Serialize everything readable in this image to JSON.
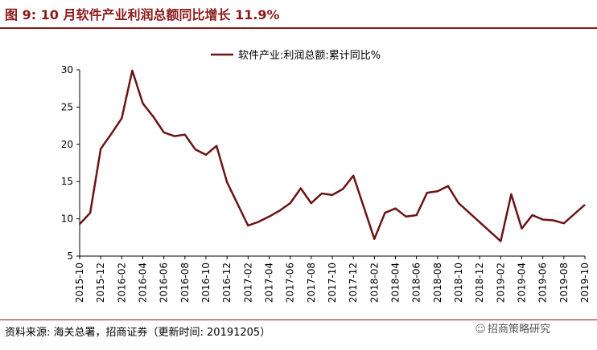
{
  "figure": {
    "title": "图 9:  10 月软件产业利润总额同比增长 11.9%",
    "source": "资料来源:  海关总署，招商证券（更新时间:  20191205）",
    "watermark": "招商策略研究",
    "accent_color": "#8b1a1a",
    "line_color": "#6b1414"
  },
  "chart_data": {
    "type": "line",
    "title": "",
    "xlabel": "",
    "ylabel": "",
    "ylim": [
      5,
      30
    ],
    "yticks": [
      5,
      10,
      15,
      20,
      25,
      30
    ],
    "grid": false,
    "legend": "top-right",
    "x": [
      "2015-10",
      "2015-11",
      "2015-12",
      "2016-01",
      "2016-02",
      "2016-03",
      "2016-04",
      "2016-05",
      "2016-06",
      "2016-07",
      "2016-08",
      "2016-09",
      "2016-10",
      "2016-11",
      "2016-12",
      "2017-01",
      "2017-02",
      "2017-03",
      "2017-04",
      "2017-05",
      "2017-06",
      "2017-07",
      "2017-08",
      "2017-09",
      "2017-10",
      "2017-11",
      "2017-12",
      "2018-01",
      "2018-02",
      "2018-03",
      "2018-04",
      "2018-05",
      "2018-06",
      "2018-07",
      "2018-08",
      "2018-09",
      "2018-10",
      "2018-11",
      "2018-12",
      "2019-01",
      "2019-02",
      "2019-03",
      "2019-04",
      "2019-05",
      "2019-06",
      "2019-07",
      "2019-08",
      "2019-09",
      "2019-10"
    ],
    "xticks": [
      "2015-10",
      "2015-12",
      "2016-02",
      "2016-04",
      "2016-06",
      "2016-08",
      "2016-10",
      "2016-12",
      "2017-02",
      "2017-04",
      "2017-06",
      "2017-08",
      "2017-10",
      "2017-12",
      "2018-02",
      "2018-04",
      "2018-06",
      "2018-08",
      "2018-10",
      "2018-12",
      "2019-02",
      "2019-04",
      "2019-06",
      "2019-08",
      "2019-10"
    ],
    "series": [
      {
        "name": "软件产业:利润总额:累计同比%",
        "values": [
          9.3,
          10.8,
          19.4,
          21.4,
          23.5,
          29.9,
          25.5,
          23.7,
          21.6,
          21.1,
          21.3,
          19.3,
          18.6,
          19.8,
          14.9,
          null,
          9.1,
          9.6,
          10.3,
          11.1,
          12.1,
          14.1,
          12.1,
          13.4,
          13.2,
          14.0,
          15.8,
          null,
          7.3,
          10.8,
          11.4,
          10.3,
          10.5,
          13.5,
          13.7,
          14.4,
          12.1,
          null,
          null,
          null,
          7.0,
          13.3,
          8.7,
          10.5,
          9.9,
          9.8,
          9.4,
          null,
          11.9
        ]
      }
    ]
  }
}
